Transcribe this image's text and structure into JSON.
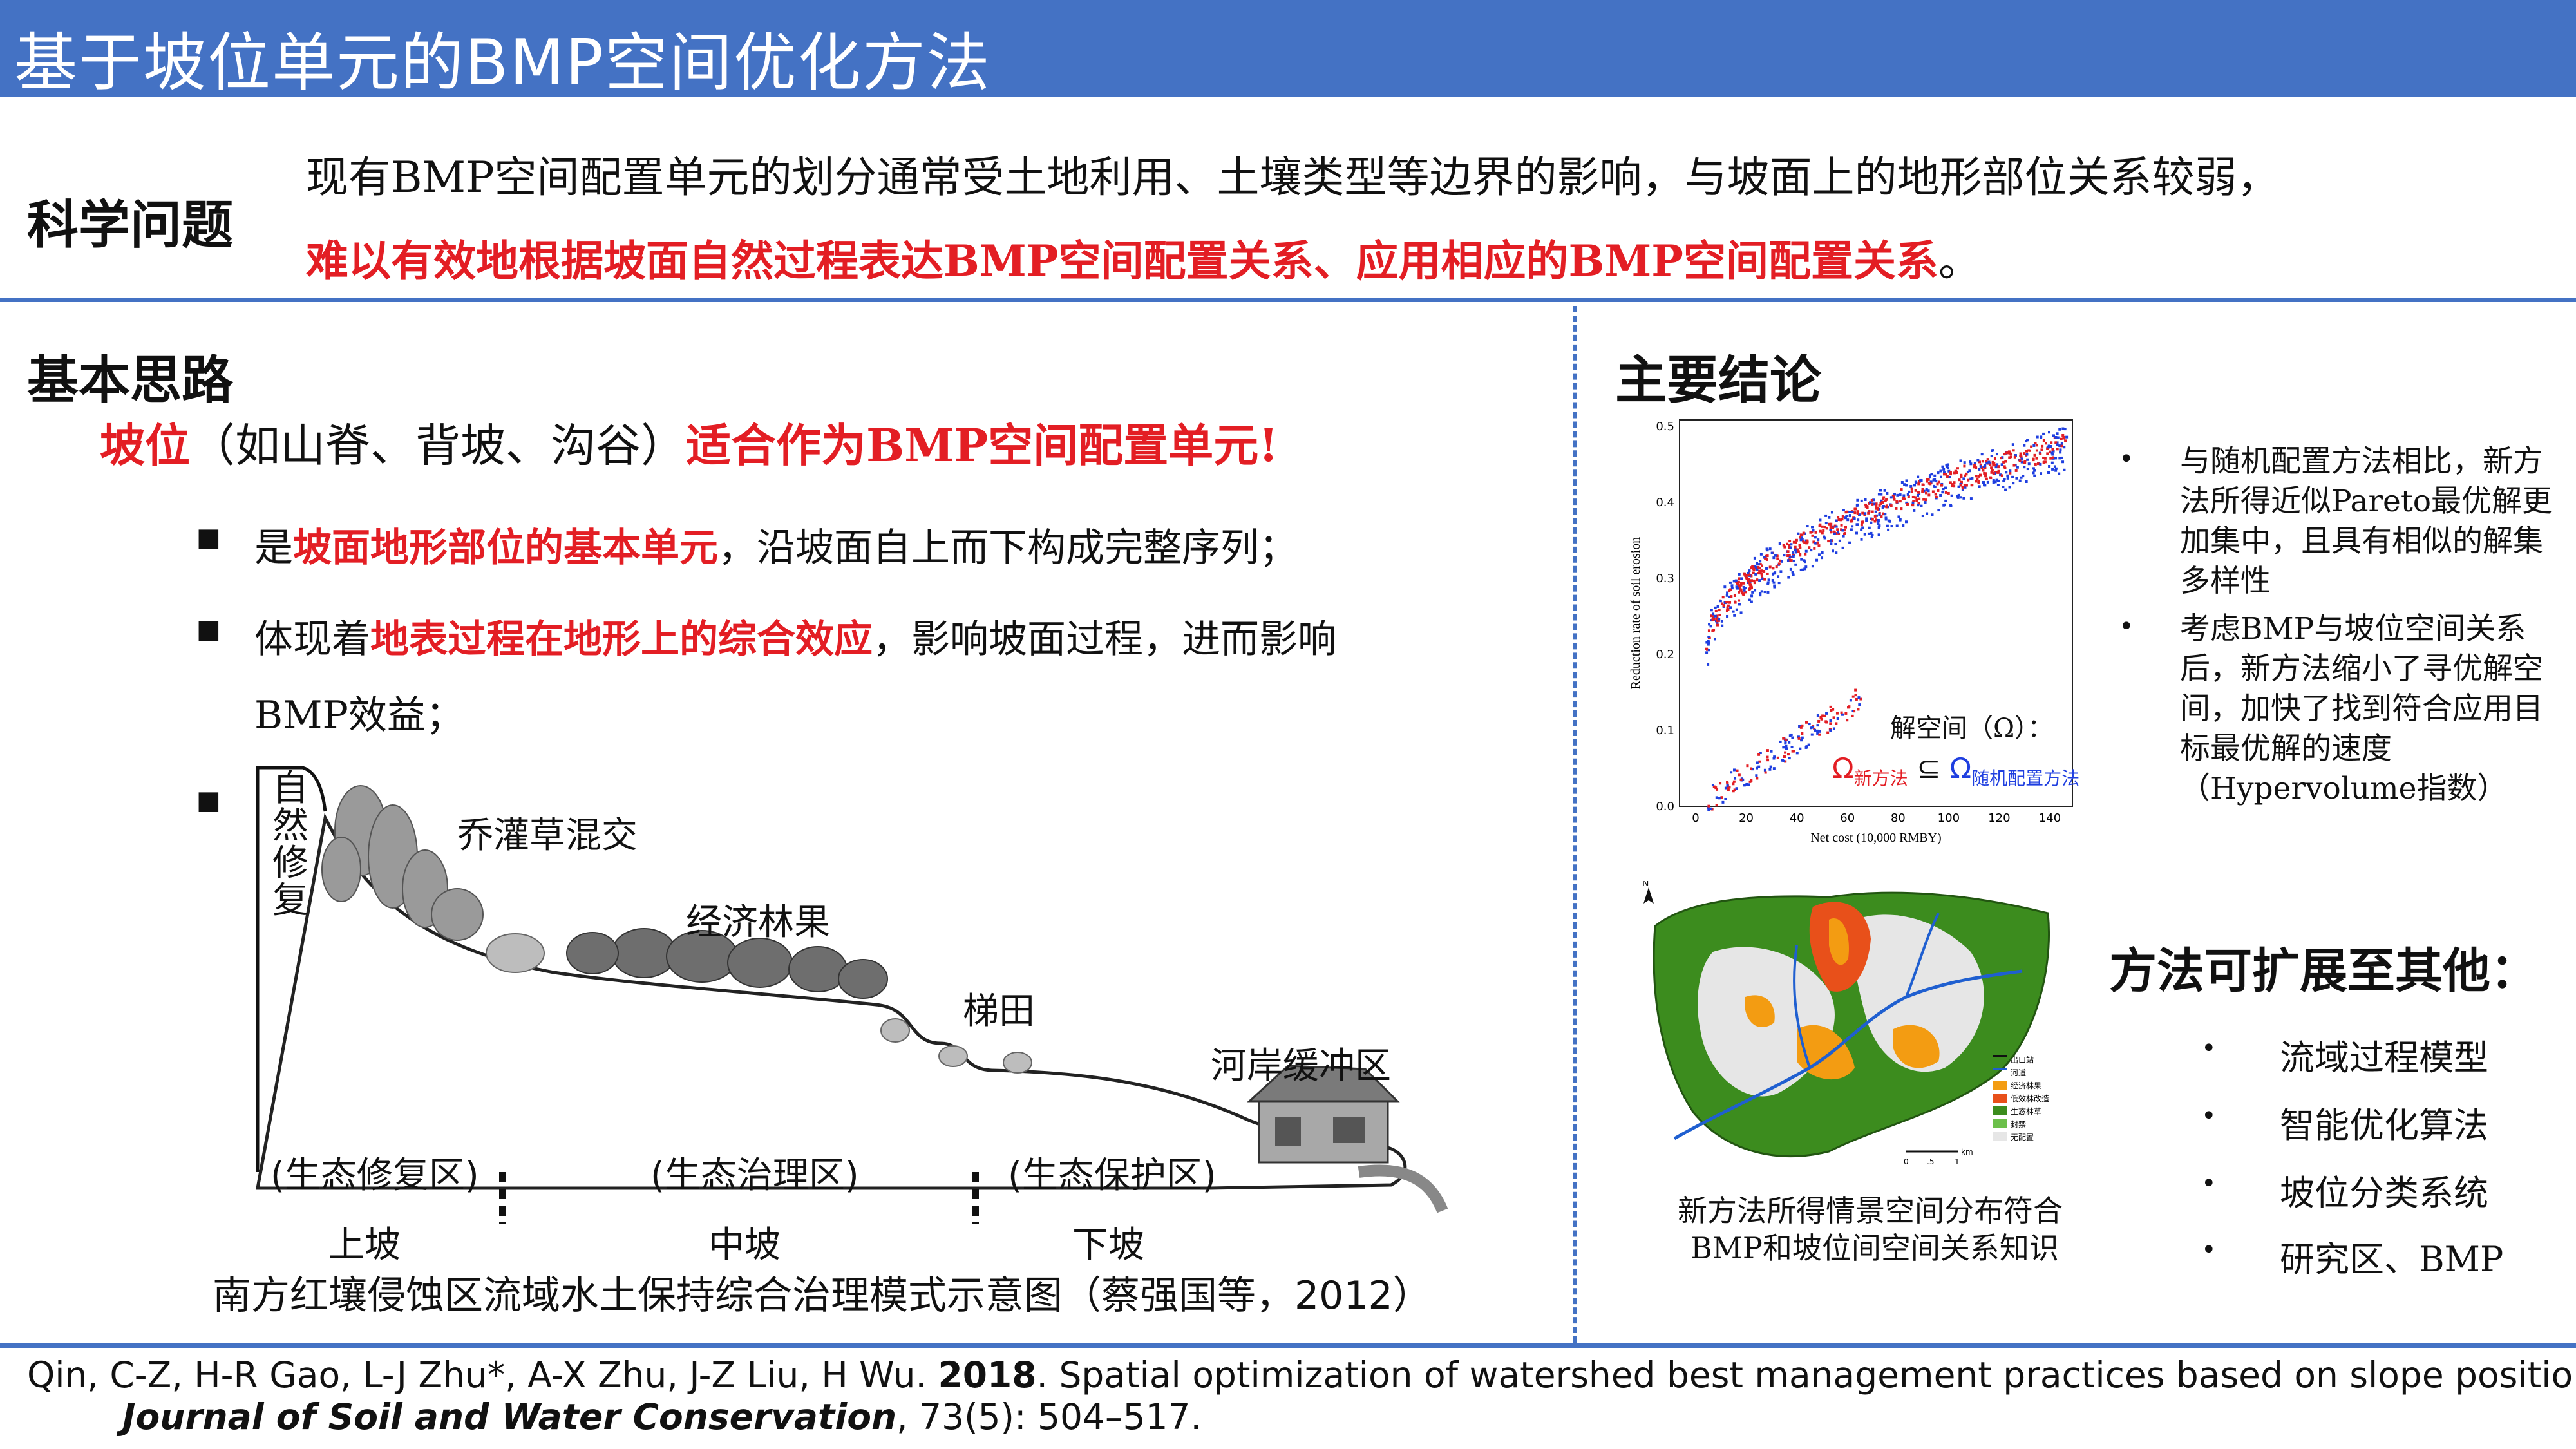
{
  "header": {
    "title": "基于坡位单元的BMP空间优化方法"
  },
  "problem": {
    "label": "科学问题",
    "line1": "现有BMP空间配置单元的划分通常受土地利用、土壤类型等边界的影响，与坡面上的地形部位关系较弱，",
    "line2_red": "难以有效地根据坡面自然过程表达BMP空间配置关系、应用相应的BMP空间配置关系",
    "line2_end": "。"
  },
  "idea": {
    "heading": "基本思路",
    "lead_red1": "坡位",
    "lead_mid": "（如山脊、背坡、沟谷）",
    "lead_red2": "适合作为BMP空间配置单元!",
    "bullets": [
      {
        "pre": "是",
        "red": "坡面地形部位的基本单元",
        "post": "，沿坡面自上而下构成完整序列；"
      },
      {
        "pre": "体现着",
        "red": "地表过程在地形上的综合效应",
        "post": "，影响坡面过程，进而影响",
        "cont": "BMP效益；"
      }
    ],
    "figure": {
      "vertical_label": "自然修复",
      "veg_labels": [
        "乔灌草混交",
        "经济林果",
        "梯田",
        "河岸缓冲区"
      ],
      "zones": [
        "(生态修复区)",
        "(生态治理区)",
        "(生态保护区)"
      ],
      "slopes": [
        "上坡",
        "中坡",
        "下坡"
      ],
      "caption": "南方红壤侵蚀区流域水土保持综合治理模式示意图（蔡强国等，2012）"
    }
  },
  "conclusion": {
    "heading": "主要结论",
    "chart": {
      "xlabel": "Net cost (10,000 RMBY)",
      "ylabel": "Reduction rate of soil erosion",
      "xticks": [
        "0",
        "20",
        "40",
        "60",
        "80",
        "100",
        "120",
        "140"
      ],
      "yticks": [
        "0.0",
        "0.1",
        "0.2",
        "0.3",
        "0.4",
        "0.5"
      ],
      "annotation": "解空间（Ω）：",
      "omega_new": "Ω",
      "omega_new_sub": "新方法",
      "subset": "⊆",
      "omega_rand": "Ω",
      "omega_rand_sub": "随机配置方法",
      "colors": {
        "new": "#E31E24",
        "random": "#1F3FE0"
      }
    },
    "points": [
      "与随机配置方法相比，新方法所得近似Pareto最优解更加集中，且具有相似的解集多样性",
      "考虑BMP与坡位空间关系后，新方法缩小了寻优解空间，加快了找到符合应用目标最优解的速度（Hypervolume指数）"
    ],
    "map": {
      "north": "N",
      "legend": [
        "出口站",
        "河道",
        "经济林果",
        "低效林改造",
        "生态林草",
        "封禁",
        "无配置"
      ],
      "scale": [
        "0",
        ".5",
        "1",
        "km"
      ],
      "caption1": "新方法所得情景空间分布符合",
      "caption2": "BMP和坡位间空间关系知识"
    },
    "extend": {
      "heading": "方法可扩展至其他：",
      "items": [
        "流域过程模型",
        "智能优化算法",
        "坡位分类系统",
        "研究区、BMP"
      ]
    }
  },
  "reference": {
    "line1_a": "Qin, C-Z, H-R Gao, L-J Zhu*, A-X Zhu, J-Z Liu, H Wu. ",
    "year": "2018",
    "line1_b": ". Spatial optimization of watershed best management practices based on slope position units.",
    "journal": "Journal of Soil and Water Conservation",
    "line2": ", 73(5): 504–517."
  }
}
